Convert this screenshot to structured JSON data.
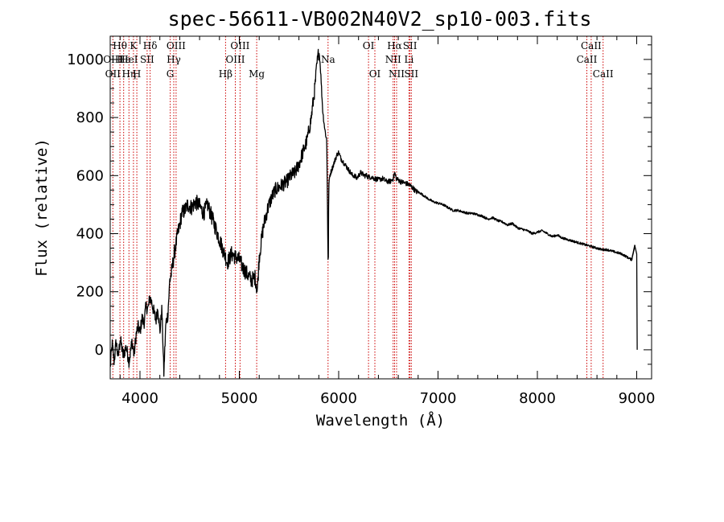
{
  "chart_data": {
    "type": "line",
    "title": "spec-56611-VB002N40V2_sp10-003.fits",
    "xlabel": "Wavelength (Å)",
    "ylabel": "Flux (relative)",
    "xlim": [
      3700,
      9150
    ],
    "ylim": [
      -100,
      1080
    ],
    "x_ticks": [
      4000,
      5000,
      6000,
      7000,
      8000,
      9000
    ],
    "y_ticks": [
      0,
      200,
      400,
      600,
      800,
      1000
    ],
    "line_color": "#000000",
    "marker_color": "#cc0000",
    "lines": [
      {
        "label": "Hθ",
        "wave": 3798,
        "row": 0
      },
      {
        "label": "K",
        "wave": 3934,
        "row": 0
      },
      {
        "label": "Hδ",
        "wave": 4102,
        "row": 0
      },
      {
        "label": "OIII",
        "wave": 4363,
        "row": 0
      },
      {
        "label": "OIII",
        "wave": 5007,
        "row": 0
      },
      {
        "label": "OI",
        "wave": 6300,
        "row": 0
      },
      {
        "label": "Hα",
        "wave": 6563,
        "row": 0
      },
      {
        "label": "SII",
        "wave": 6717,
        "row": 0
      },
      {
        "label": "CaII",
        "wave": 8542,
        "row": 0
      },
      {
        "label": "OIII",
        "wave": 3727,
        "row": 1
      },
      {
        "label": "Hε",
        "wave": 3835,
        "row": 1
      },
      {
        "label": "HeI",
        "wave": 3889,
        "row": 1
      },
      {
        "label": "SII",
        "wave": 4072,
        "row": 1
      },
      {
        "label": "Hγ",
        "wave": 4340,
        "row": 1
      },
      {
        "label": "OIII",
        "wave": 4959,
        "row": 1
      },
      {
        "label": "Na",
        "wave": 5893,
        "row": 1
      },
      {
        "label": "NII",
        "wave": 6548,
        "row": 1
      },
      {
        "label": "Li",
        "wave": 6708,
        "row": 1
      },
      {
        "label": "CaII",
        "wave": 8498,
        "row": 1
      },
      {
        "label": "OII",
        "wave": 3727,
        "row": 2
      },
      {
        "label": "Hη",
        "wave": 3889,
        "row": 2
      },
      {
        "label": "H",
        "wave": 3968,
        "row": 2
      },
      {
        "label": "G",
        "wave": 4304,
        "row": 2
      },
      {
        "label": "Hβ",
        "wave": 4861,
        "row": 2
      },
      {
        "label": "Mg",
        "wave": 5175,
        "row": 2
      },
      {
        "label": "OI",
        "wave": 6364,
        "row": 2
      },
      {
        "label": "NII",
        "wave": 6583,
        "row": 2
      },
      {
        "label": "SII",
        "wave": 6731,
        "row": 2
      },
      {
        "label": "CaII",
        "wave": 8662,
        "row": 2
      }
    ],
    "markers": [
      3727,
      3798,
      3835,
      3889,
      3934,
      3968,
      4072,
      4102,
      4304,
      4340,
      4363,
      4861,
      4959,
      5007,
      5175,
      5893,
      6300,
      6364,
      6548,
      6563,
      6583,
      6708,
      6717,
      6731,
      8498,
      8542,
      8662
    ],
    "spectrum_x": [
      3700,
      3720,
      3740,
      3760,
      3780,
      3800,
      3830,
      3860,
      3890,
      3920,
      3940,
      3960,
      3980,
      4000,
      4020,
      4040,
      4060,
      4080,
      4100,
      4120,
      4140,
      4160,
      4180,
      4200,
      4220,
      4240,
      4260,
      4280,
      4300,
      4320,
      4340,
      4360,
      4380,
      4400,
      4420,
      4450,
      4480,
      4520,
      4560,
      4600,
      4640,
      4680,
      4720,
      4760,
      4800,
      4840,
      4880,
      4920,
      4960,
      5000,
      5040,
      5080,
      5120,
      5160,
      5180,
      5200,
      5240,
      5280,
      5320,
      5360,
      5400,
      5440,
      5480,
      5520,
      5560,
      5600,
      5640,
      5680,
      5720,
      5760,
      5780,
      5800,
      5810,
      5820,
      5830,
      5840,
      5860,
      5880,
      5890,
      5895,
      5900,
      5910,
      5920,
      5940,
      5960,
      5980,
      6000,
      6020,
      6040,
      6060,
      6080,
      6100,
      6120,
      6140,
      6160,
      6180,
      6200,
      6220,
      6240,
      6260,
      6280,
      6300,
      6330,
      6360,
      6400,
      6440,
      6480,
      6520,
      6550,
      6563,
      6580,
      6620,
      6660,
      6700,
      6740,
      6780,
      6820,
      6860,
      6900,
      6950,
      7000,
      7050,
      7100,
      7150,
      7200,
      7250,
      7300,
      7350,
      7400,
      7450,
      7500,
      7550,
      7600,
      7650,
      7700,
      7750,
      7800,
      7850,
      7900,
      7950,
      8000,
      8050,
      8100,
      8150,
      8200,
      8250,
      8300,
      8350,
      8400,
      8450,
      8500,
      8550,
      8600,
      8650,
      8700,
      8750,
      8800,
      8850,
      8900,
      8950,
      8980,
      9000,
      9005
    ],
    "spectrum_y": [
      -60,
      20,
      -40,
      30,
      -30,
      40,
      -20,
      10,
      -40,
      30,
      -20,
      50,
      80,
      60,
      110,
      90,
      150,
      140,
      180,
      160,
      130,
      100,
      150,
      60,
      140,
      -80,
      90,
      120,
      240,
      270,
      320,
      360,
      400,
      430,
      470,
      480,
      500,
      490,
      510,
      495,
      470,
      500,
      460,
      420,
      380,
      340,
      300,
      330,
      320,
      310,
      280,
      260,
      240,
      250,
      200,
      320,
      420,
      480,
      520,
      550,
      560,
      570,
      580,
      600,
      610,
      640,
      680,
      720,
      790,
      900,
      980,
      1030,
      1000,
      950,
      880,
      820,
      760,
      720,
      400,
      250,
      560,
      600,
      610,
      630,
      650,
      670,
      680,
      660,
      650,
      640,
      630,
      620,
      610,
      600,
      600,
      590,
      600,
      610,
      605,
      600,
      600,
      595,
      595,
      590,
      585,
      590,
      580,
      580,
      590,
      610,
      590,
      580,
      575,
      570,
      560,
      545,
      540,
      530,
      520,
      510,
      505,
      500,
      490,
      480,
      480,
      475,
      470,
      470,
      465,
      460,
      450,
      455,
      445,
      440,
      430,
      435,
      420,
      415,
      410,
      400,
      405,
      410,
      400,
      390,
      395,
      385,
      380,
      375,
      370,
      365,
      360,
      355,
      350,
      345,
      345,
      340,
      335,
      330,
      320,
      310,
      360,
      330,
      0
    ]
  }
}
